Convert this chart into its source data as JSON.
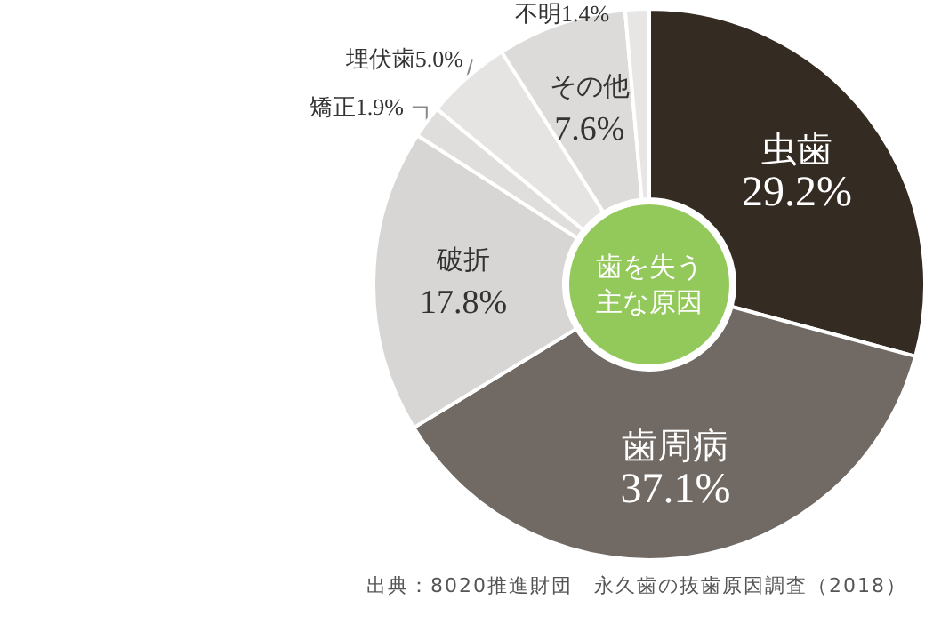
{
  "chart_data": {
    "type": "donut",
    "title": "歯を失う主な原因",
    "categories": [
      "虫歯",
      "歯周病",
      "破折",
      "矯正",
      "埋伏歯",
      "その他",
      "不明"
    ],
    "values": [
      29.2,
      37.1,
      17.8,
      1.9,
      5.0,
      7.6,
      1.4
    ],
    "value_labels": [
      "29.2%",
      "37.1%",
      "17.8%",
      "1.9%",
      "5.0%",
      "7.6%",
      "1.4%"
    ],
    "colors": [
      "#342b22",
      "#716a64",
      "#d8d6d4",
      "#e0dedc",
      "#e6e4e2",
      "#dddbd9",
      "#e8e6e4"
    ],
    "legend": false,
    "annotations": [
      "出典：8020推進財団　永久歯の抜歯原因調査（2018）"
    ]
  }
}
